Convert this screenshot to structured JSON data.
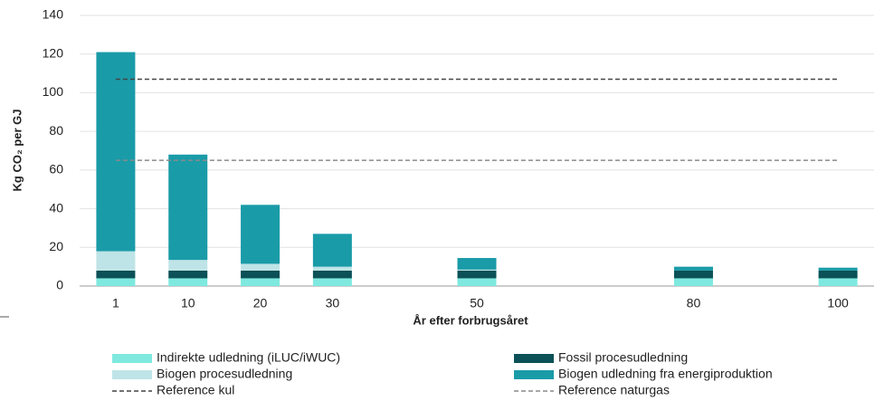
{
  "chart_data": {
    "type": "bar",
    "stacked": true,
    "y_label": "Kg CO₂ per GJ",
    "x_label": "År efter forbrugsåret",
    "categories": [
      "1",
      "10",
      "20",
      "30",
      null,
      "50",
      null,
      null,
      "80",
      null,
      "100"
    ],
    "series": [
      {
        "name": "Indirekte udledning (iLUC/iWUC)",
        "color": "#7fe9df",
        "values": [
          4,
          4,
          4,
          4,
          null,
          4,
          null,
          null,
          4,
          null,
          4
        ]
      },
      {
        "name": "Fossil procesudledning",
        "color": "#0b5157",
        "values": [
          4,
          4,
          4,
          4,
          null,
          4,
          null,
          null,
          4,
          null,
          4
        ]
      },
      {
        "name": "Biogen procesudledning",
        "color": "#bfe4e7",
        "values": [
          10,
          5.5,
          3.5,
          2,
          null,
          0.5,
          null,
          null,
          0,
          null,
          0
        ]
      },
      {
        "name": "Biogen udledning fra energiproduktion",
        "color": "#1a9ba8",
        "values": [
          103,
          54.5,
          30.5,
          17,
          null,
          6,
          null,
          null,
          2,
          null,
          1.5
        ]
      }
    ],
    "reference_lines": [
      {
        "name": "Reference kul",
        "value": 107,
        "color": "#444444"
      },
      {
        "name": "Reference naturgas",
        "value": 65,
        "color": "#8a8a8a"
      }
    ],
    "ylim": [
      0,
      140
    ],
    "yticks": [
      0,
      20,
      40,
      60,
      80,
      100,
      120,
      140
    ],
    "grid": true
  }
}
